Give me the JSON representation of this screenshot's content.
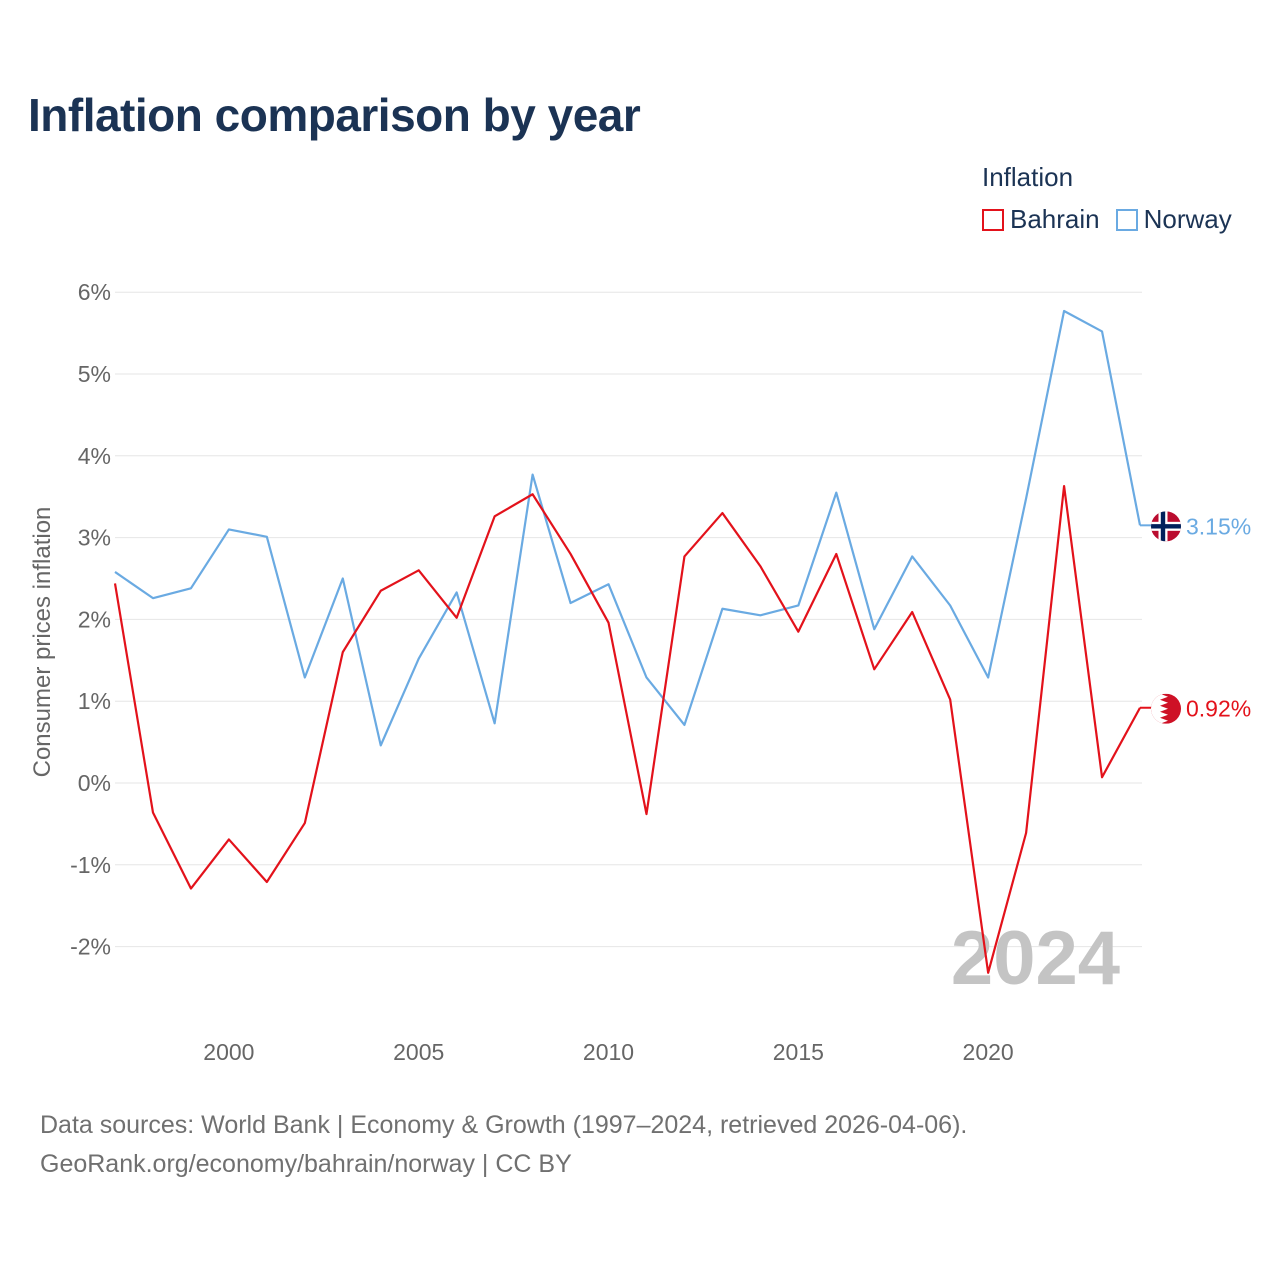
{
  "title": "Inflation comparison by year",
  "legend": {
    "title": "Inflation",
    "items": [
      {
        "label": "Bahrain",
        "color": "#e3121b"
      },
      {
        "label": "Norway",
        "color": "#6aaae2"
      }
    ]
  },
  "footer": {
    "line1": "Data sources: World Bank | Economy & Growth (1997–2024, retrieved 2026-04-06).",
    "line2": "GeoRank.org/economy/bahrain/norway | CC BY"
  },
  "chart_data": {
    "type": "line",
    "title": "Inflation comparison by year",
    "xlabel": "",
    "ylabel": "Consumer prices inflation",
    "xlim": [
      1997,
      2024
    ],
    "ylim": [
      -2.5,
      6.3
    ],
    "x_ticks": [
      2000,
      2005,
      2010,
      2015,
      2020
    ],
    "x_tick_labels": [
      "2000",
      "2005",
      "2010",
      "2015",
      "2020"
    ],
    "y_ticks": [
      -2,
      -1,
      0,
      1,
      2,
      3,
      4,
      5,
      6
    ],
    "y_tick_labels": [
      "-2%",
      "-1%",
      "0%",
      "1%",
      "2%",
      "3%",
      "4%",
      "5%",
      "6%"
    ],
    "grid": true,
    "legend_position": "top-right",
    "year_watermark": "2024",
    "x": [
      1997,
      1998,
      1999,
      2000,
      2001,
      2002,
      2003,
      2004,
      2005,
      2006,
      2007,
      2008,
      2009,
      2010,
      2011,
      2012,
      2013,
      2014,
      2015,
      2016,
      2017,
      2018,
      2019,
      2020,
      2021,
      2022,
      2023,
      2024
    ],
    "series": [
      {
        "name": "Norway",
        "color": "#6aaae2",
        "end_label": "3.15%",
        "values": [
          2.58,
          2.26,
          2.38,
          3.1,
          3.01,
          1.29,
          2.5,
          0.46,
          1.52,
          2.33,
          0.73,
          3.77,
          2.2,
          2.43,
          1.29,
          0.71,
          2.13,
          2.05,
          2.17,
          3.55,
          1.88,
          2.77,
          2.17,
          1.29,
          3.48,
          5.77,
          5.52,
          3.15
        ]
      },
      {
        "name": "Bahrain",
        "color": "#e3121b",
        "end_label": "0.92%",
        "values": [
          2.44,
          -0.36,
          -1.29,
          -0.69,
          -1.21,
          -0.49,
          1.6,
          2.35,
          2.6,
          2.02,
          3.26,
          3.53,
          2.8,
          1.96,
          -0.38,
          2.77,
          3.3,
          2.65,
          1.85,
          2.8,
          1.39,
          2.09,
          1.02,
          -2.32,
          -0.61,
          3.63,
          0.07,
          0.92
        ]
      }
    ]
  }
}
